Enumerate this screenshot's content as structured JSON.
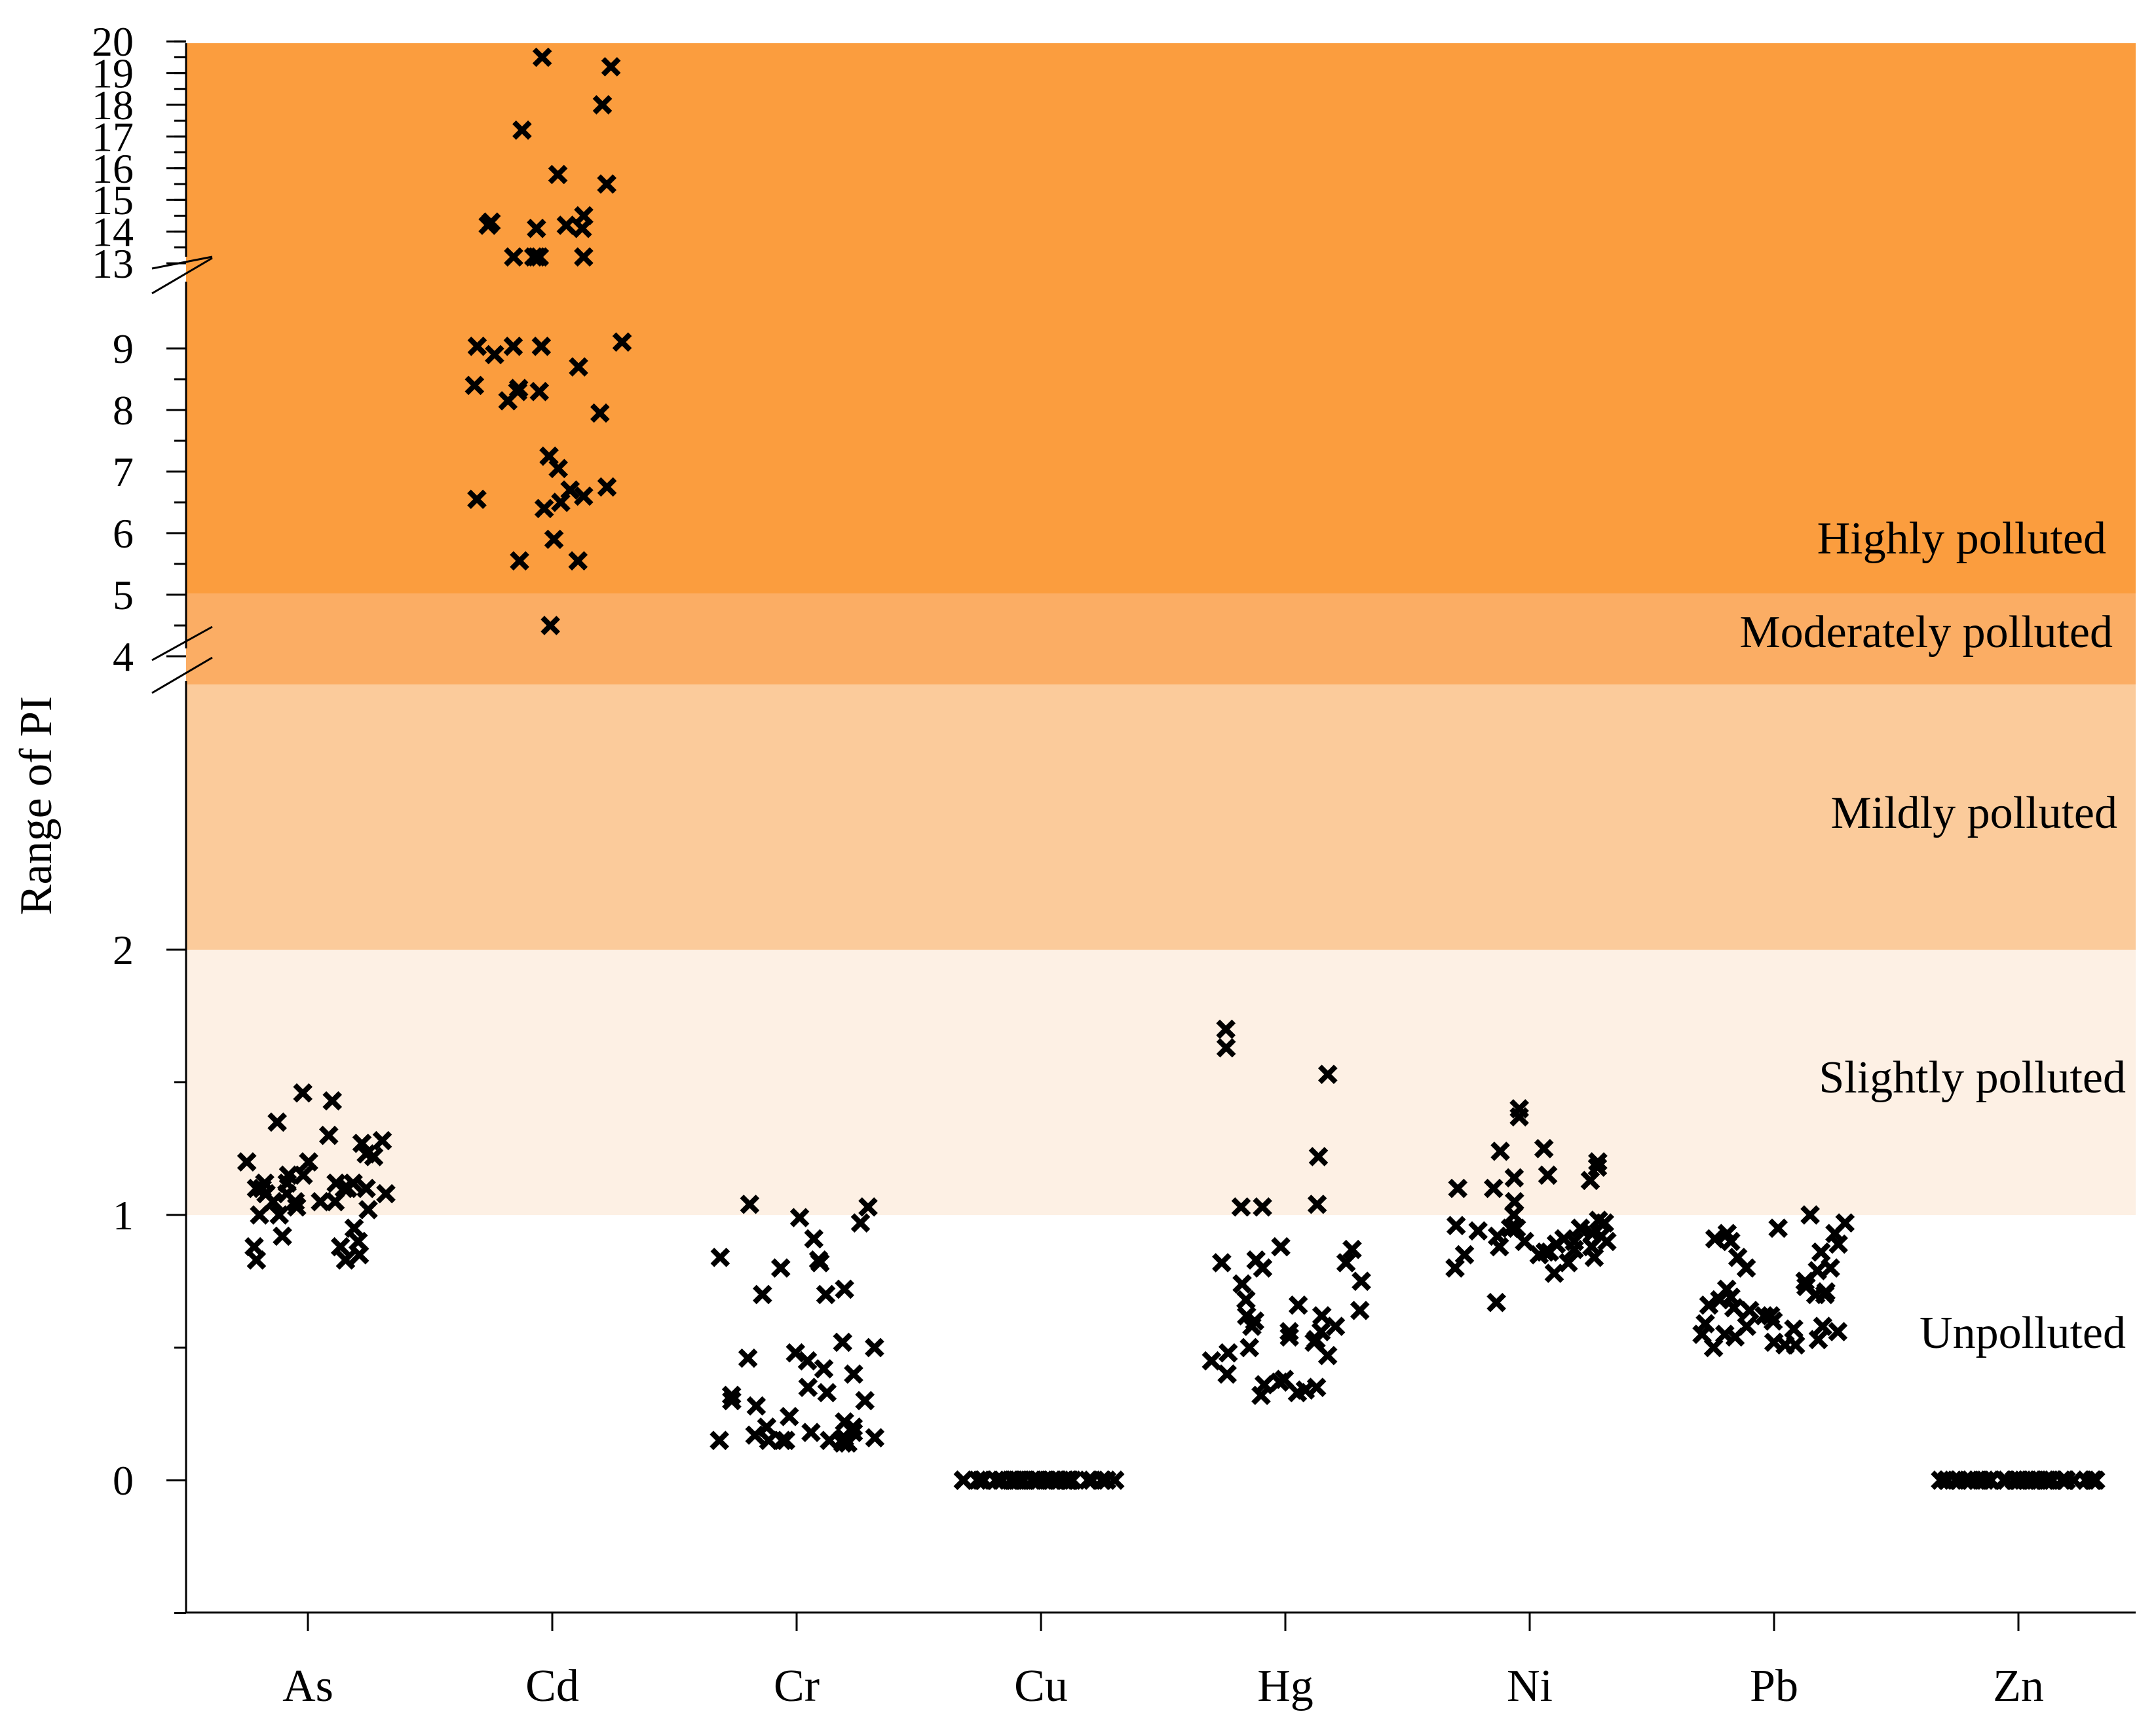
{
  "chart_data": {
    "type": "scatter",
    "ylabel": "Range of PI",
    "xlabel": "",
    "categories": [
      "As",
      "Cd",
      "Cr",
      "Cu",
      "Hg",
      "Ni",
      "Pb",
      "Zn"
    ],
    "y_ticks_lower": [
      "0",
      "1",
      "2"
    ],
    "y_ticks_middle": [
      "4",
      "5",
      "6",
      "7",
      "8",
      "9"
    ],
    "y_ticks_upper": [
      "13",
      "14",
      "15",
      "16",
      "17",
      "18",
      "19",
      "20"
    ],
    "axis_breaks": [
      "between 2 and 4",
      "between 9 and 13"
    ],
    "zones": [
      {
        "label": "Unpolluted",
        "range": [
          -0.5,
          1
        ],
        "color": "#ffffff"
      },
      {
        "label": "Slightly polluted",
        "range": [
          1,
          2
        ],
        "color": "#fdf0e4"
      },
      {
        "label": "Mildly polluted",
        "range": [
          2,
          3
        ],
        "color": "#fbcb9b"
      },
      {
        "label": "Moderately polluted",
        "range": [
          3,
          5
        ],
        "color": "#fbad64"
      },
      {
        "label": "Highly polluted",
        "range": [
          5,
          20
        ],
        "color": "#fb9d3e"
      }
    ],
    "series": [
      {
        "name": "As",
        "values": [
          1.43,
          1.35,
          1.3,
          1.08,
          1.12,
          1.05,
          1.1,
          1.02,
          0.88,
          0.85,
          0.83,
          0.92,
          0.95,
          1.0,
          1.05,
          1.08,
          1.1,
          1.12,
          1.23,
          1.27,
          1.2,
          1.15,
          1.1,
          1.08,
          1.05,
          1.12,
          1.22,
          1.1,
          1.05,
          1.03,
          0.9,
          0.83,
          0.88,
          1.0,
          1.15,
          1.2,
          1.28,
          1.46,
          1.1,
          1.12
        ]
      },
      {
        "name": "Cd",
        "values": [
          19.5,
          19.2,
          18.0,
          17.2,
          15.8,
          15.5,
          14.5,
          14.3,
          14.2,
          14.2,
          14.1,
          14.1,
          13.2,
          13.2,
          13.2,
          13.2,
          13.2,
          9.3,
          9.1,
          9.1,
          9.1,
          8.9,
          8.7,
          8.4,
          8.35,
          8.3,
          8.3,
          8.15,
          7.95,
          7.25,
          7.05,
          6.75,
          6.7,
          6.6,
          6.55,
          6.5,
          6.4,
          5.9,
          5.55,
          5.55,
          4.5
        ]
      },
      {
        "name": "Cr",
        "values": [
          1.03,
          1.04,
          0.99,
          0.97,
          0.91,
          0.84,
          0.83,
          0.82,
          0.8,
          0.72,
          0.7,
          0.7,
          0.52,
          0.5,
          0.48,
          0.46,
          0.45,
          0.42,
          0.4,
          0.35,
          0.33,
          0.32,
          0.3,
          0.3,
          0.28,
          0.24,
          0.22,
          0.2,
          0.18,
          0.17,
          0.16,
          0.15,
          0.15,
          0.15,
          0.15,
          0.15,
          0.14,
          0.14,
          0.16,
          0.18,
          0.2
        ]
      },
      {
        "name": "Cu",
        "values": [
          0,
          0,
          0,
          0,
          0,
          0,
          0,
          0,
          0,
          0,
          0,
          0,
          0,
          0,
          0,
          0,
          0,
          0,
          0,
          0,
          0,
          0,
          0,
          0,
          0,
          0,
          0,
          0,
          0,
          0,
          0,
          0,
          0,
          0,
          0,
          0,
          0,
          0,
          0,
          0
        ]
      },
      {
        "name": "Hg",
        "values": [
          1.7,
          1.63,
          1.53,
          1.22,
          1.04,
          1.03,
          1.03,
          0.88,
          0.87,
          0.83,
          0.82,
          0.82,
          0.8,
          0.75,
          0.74,
          0.68,
          0.66,
          0.64,
          0.62,
          0.62,
          0.6,
          0.58,
          0.58,
          0.56,
          0.56,
          0.54,
          0.53,
          0.52,
          0.5,
          0.48,
          0.47,
          0.45,
          0.4,
          0.38,
          0.37,
          0.36,
          0.35,
          0.34,
          0.33,
          0.32
        ]
      },
      {
        "name": "Ni",
        "values": [
          1.4,
          1.37,
          1.25,
          1.24,
          1.2,
          1.18,
          1.15,
          1.14,
          1.13,
          1.1,
          1.1,
          1.05,
          1.0,
          0.98,
          0.97,
          0.96,
          0.95,
          0.95,
          0.94,
          0.93,
          0.92,
          0.92,
          0.91,
          0.9,
          0.9,
          0.9,
          0.89,
          0.88,
          0.88,
          0.87,
          0.86,
          0.86,
          0.85,
          0.85,
          0.84,
          0.82,
          0.8,
          0.78,
          0.67,
          0.95
        ]
      },
      {
        "name": "Pb",
        "values": [
          1.0,
          0.97,
          0.95,
          0.93,
          0.93,
          0.91,
          0.9,
          0.89,
          0.86,
          0.84,
          0.8,
          0.8,
          0.79,
          0.75,
          0.73,
          0.72,
          0.71,
          0.7,
          0.7,
          0.69,
          0.68,
          0.66,
          0.65,
          0.64,
          0.62,
          0.6,
          0.59,
          0.58,
          0.57,
          0.56,
          0.55,
          0.55,
          0.54,
          0.53,
          0.52,
          0.51,
          0.51,
          0.5,
          0.58,
          0.62
        ]
      },
      {
        "name": "Zn",
        "values": [
          0,
          0,
          0,
          0,
          0,
          0,
          0,
          0,
          0,
          0,
          0,
          0,
          0,
          0,
          0,
          0,
          0,
          0,
          0,
          0,
          0,
          0,
          0,
          0,
          0,
          0,
          0,
          0,
          0,
          0,
          0,
          0,
          0,
          0,
          0,
          0,
          0,
          0,
          0,
          0
        ]
      }
    ]
  }
}
